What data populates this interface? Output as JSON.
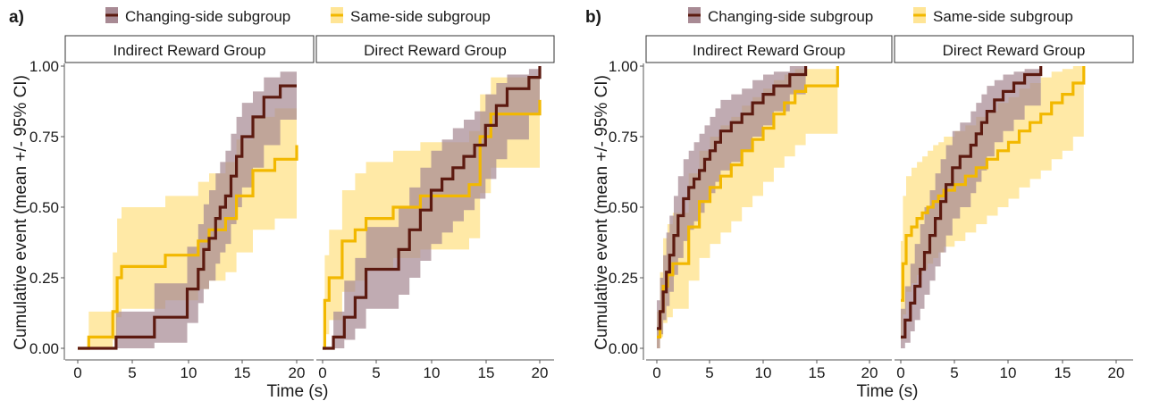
{
  "figure": {
    "background": "#ffffff",
    "colors": {
      "changing_line": "#5c1a10",
      "changing_band": "#a88a94",
      "same_line": "#f2b800",
      "same_band": "#ffe596",
      "axis": "#555555",
      "text": "#1a1a1a"
    }
  },
  "chart_data": [
    {
      "label": "a)",
      "type": "line",
      "legend": {
        "placement": "top",
        "entries": [
          "Changing-side subgroup",
          "Same-side subgroup"
        ]
      },
      "xlabel": "Time (s)",
      "ylabel": "Cumulative event (mean +/- 95% CI)",
      "xlim": [
        -1,
        21.5
      ],
      "ylim": [
        -0.05,
        1.02
      ],
      "xticks": [
        0,
        5,
        10,
        15,
        20
      ],
      "yticks": [
        0.0,
        0.25,
        0.5,
        0.75,
        1.0
      ],
      "ytick_labels": [
        "0.00",
        "0.25",
        "0.50",
        "0.75",
        "1.00"
      ],
      "grid": false,
      "panels": [
        {
          "title": "Indirect Reward Group",
          "series": [
            {
              "name": "Changing-side subgroup",
              "x": [
                0,
                3.5,
                7.0,
                10.0,
                11.0,
                11.5,
                12.0,
                12.6,
                13.0,
                13.5,
                14.0,
                14.5,
                15.0,
                16.0,
                17.0,
                18.5,
                20.0
              ],
              "y": [
                0,
                0.04,
                0.11,
                0.21,
                0.28,
                0.35,
                0.39,
                0.46,
                0.5,
                0.54,
                0.61,
                0.68,
                0.75,
                0.82,
                0.89,
                0.93,
                0.93
              ],
              "lower": [
                0,
                0.0,
                0.02,
                0.09,
                0.16,
                0.21,
                0.24,
                0.3,
                0.34,
                0.37,
                0.44,
                0.5,
                0.57,
                0.64,
                0.72,
                0.81,
                0.81
              ],
              "upper": [
                0,
                0.13,
                0.23,
                0.36,
                0.44,
                0.51,
                0.56,
                0.62,
                0.66,
                0.7,
                0.76,
                0.82,
                0.87,
                0.91,
                0.96,
                0.98,
                0.98
              ]
            },
            {
              "name": "Same-side subgroup",
              "x": [
                0,
                1.0,
                3.2,
                3.6,
                4.0,
                8.0,
                11.0,
                12.0,
                13.5,
                14.5,
                16.0,
                18.0,
                20.0
              ],
              "y": [
                0,
                0.04,
                0.13,
                0.25,
                0.29,
                0.33,
                0.38,
                0.42,
                0.46,
                0.54,
                0.63,
                0.67,
                0.72
              ],
              "lower": [
                0,
                0.0,
                0.03,
                0.11,
                0.14,
                0.17,
                0.21,
                0.24,
                0.27,
                0.34,
                0.42,
                0.46,
                0.52
              ],
              "upper": [
                0,
                0.13,
                0.34,
                0.46,
                0.5,
                0.54,
                0.59,
                0.62,
                0.66,
                0.74,
                0.82,
                0.85,
                0.89
              ]
            }
          ]
        },
        {
          "title": "Direct Reward Group",
          "series": [
            {
              "name": "Changing-side subgroup",
              "x": [
                0,
                1.0,
                2.0,
                3.0,
                4.0,
                7.0,
                8.0,
                9.0,
                10.0,
                11.0,
                12.0,
                13.0,
                14.0,
                15.0,
                16.0,
                17.0,
                19.0,
                20.0
              ],
              "y": [
                0,
                0.04,
                0.11,
                0.18,
                0.28,
                0.35,
                0.42,
                0.49,
                0.56,
                0.6,
                0.64,
                0.68,
                0.72,
                0.79,
                0.86,
                0.92,
                0.96,
                1.0
              ],
              "lower": [
                0,
                0.0,
                0.03,
                0.07,
                0.14,
                0.19,
                0.25,
                0.31,
                0.37,
                0.41,
                0.45,
                0.49,
                0.53,
                0.6,
                0.67,
                0.74,
                0.83,
                0.88
              ],
              "upper": [
                0,
                0.13,
                0.24,
                0.32,
                0.43,
                0.5,
                0.57,
                0.64,
                0.7,
                0.74,
                0.78,
                0.81,
                0.84,
                0.9,
                0.94,
                0.97,
                0.99,
                1.0
              ]
            },
            {
              "name": "Same-side subgroup",
              "x": [
                0,
                0.2,
                0.6,
                1.8,
                3.0,
                4.0,
                6.5,
                9.0,
                13.5,
                14.5,
                15.5,
                20.0
              ],
              "y": [
                0,
                0.17,
                0.25,
                0.38,
                0.42,
                0.46,
                0.5,
                0.54,
                0.58,
                0.75,
                0.83,
                0.88
              ],
              "lower": [
                0,
                0.05,
                0.1,
                0.2,
                0.24,
                0.28,
                0.32,
                0.35,
                0.39,
                0.55,
                0.64,
                0.7
              ],
              "upper": [
                0,
                0.33,
                0.42,
                0.56,
                0.62,
                0.66,
                0.7,
                0.73,
                0.77,
                0.9,
                0.96,
                0.98
              ]
            }
          ]
        }
      ]
    },
    {
      "label": "b)",
      "type": "line",
      "legend": {
        "placement": "top",
        "entries": [
          "Changing-side subgroup",
          "Same-side subgroup"
        ]
      },
      "xlabel": "Time (s)",
      "ylabel": "Cumulative event (mean +/- 95% CI)",
      "xlim": [
        -1,
        21.5
      ],
      "ylim": [
        -0.05,
        1.02
      ],
      "xticks": [
        0,
        5,
        10,
        15,
        20
      ],
      "yticks": [
        0.0,
        0.25,
        0.5,
        0.75,
        1.0
      ],
      "ytick_labels": [
        "0.00",
        "0.25",
        "0.50",
        "0.75",
        "1.00"
      ],
      "grid": false,
      "panels": [
        {
          "title": "Indirect Reward Group",
          "series": [
            {
              "name": "Changing-side subgroup",
              "x": [
                0,
                0.3,
                0.6,
                0.9,
                1.2,
                1.6,
                2.0,
                2.5,
                3.0,
                3.5,
                4.0,
                4.5,
                5.0,
                5.5,
                6.0,
                7.0,
                8.0,
                9.0,
                10.0,
                11.0,
                12.5,
                14.0
              ],
              "y": [
                0.07,
                0.13,
                0.2,
                0.27,
                0.33,
                0.4,
                0.47,
                0.53,
                0.57,
                0.6,
                0.63,
                0.67,
                0.7,
                0.73,
                0.77,
                0.8,
                0.83,
                0.87,
                0.9,
                0.93,
                0.97,
                1.0
              ],
              "lower": [
                0.0,
                0.05,
                0.1,
                0.15,
                0.2,
                0.26,
                0.32,
                0.38,
                0.42,
                0.45,
                0.48,
                0.52,
                0.55,
                0.59,
                0.63,
                0.66,
                0.7,
                0.75,
                0.79,
                0.84,
                0.9,
                0.95
              ],
              "upper": [
                0.17,
                0.25,
                0.33,
                0.41,
                0.47,
                0.54,
                0.61,
                0.67,
                0.7,
                0.73,
                0.76,
                0.79,
                0.82,
                0.85,
                0.88,
                0.9,
                0.92,
                0.95,
                0.97,
                0.98,
                1.0,
                1.0
              ]
            },
            {
              "name": "Same-side subgroup",
              "x": [
                0,
                0.3,
                0.6,
                1.0,
                1.5,
                3.0,
                4.0,
                5.0,
                6.0,
                7.0,
                8.0,
                9.0,
                10.0,
                11.0,
                12.0,
                13.0,
                14.0,
                15.0,
                17.0
              ],
              "y": [
                0.04,
                0.13,
                0.22,
                0.26,
                0.3,
                0.43,
                0.52,
                0.57,
                0.61,
                0.65,
                0.7,
                0.74,
                0.78,
                0.83,
                0.87,
                0.91,
                0.93,
                0.93,
                1.0
              ],
              "lower": [
                0.0,
                0.04,
                0.09,
                0.11,
                0.14,
                0.24,
                0.32,
                0.37,
                0.41,
                0.45,
                0.5,
                0.54,
                0.59,
                0.64,
                0.68,
                0.72,
                0.76,
                0.76,
                0.8
              ],
              "upper": [
                0.13,
                0.27,
                0.39,
                0.44,
                0.48,
                0.62,
                0.7,
                0.75,
                0.79,
                0.82,
                0.86,
                0.89,
                0.92,
                0.95,
                0.97,
                0.99,
                0.99,
                0.99,
                1.0
              ]
            }
          ]
        },
        {
          "title": "Direct Reward Group",
          "series": [
            {
              "name": "Changing-side subgroup",
              "x": [
                0,
                0.4,
                0.9,
                1.3,
                1.8,
                2.2,
                2.7,
                3.2,
                3.7,
                4.2,
                4.8,
                5.5,
                6.5,
                7.0,
                7.5,
                8.0,
                8.7,
                9.5,
                10.5,
                11.5,
                13.0
              ],
              "y": [
                0.04,
                0.1,
                0.16,
                0.22,
                0.28,
                0.34,
                0.4,
                0.46,
                0.52,
                0.58,
                0.64,
                0.68,
                0.72,
                0.76,
                0.8,
                0.84,
                0.88,
                0.91,
                0.94,
                0.97,
                1.0
              ],
              "lower": [
                0.0,
                0.02,
                0.06,
                0.1,
                0.14,
                0.19,
                0.24,
                0.29,
                0.34,
                0.4,
                0.46,
                0.5,
                0.55,
                0.59,
                0.63,
                0.68,
                0.73,
                0.77,
                0.81,
                0.86,
                0.92
              ],
              "upper": [
                0.14,
                0.22,
                0.3,
                0.37,
                0.44,
                0.5,
                0.56,
                0.62,
                0.67,
                0.72,
                0.77,
                0.8,
                0.84,
                0.87,
                0.9,
                0.93,
                0.95,
                0.97,
                0.98,
                0.99,
                1.0
              ]
            },
            {
              "name": "Same-side subgroup",
              "x": [
                0,
                0.2,
                0.5,
                1.0,
                1.5,
                2.0,
                2.5,
                3.0,
                3.5,
                4.0,
                5.0,
                6.0,
                7.0,
                8.0,
                9.0,
                10.0,
                11.0,
                12.0,
                13.0,
                14.0,
                15.0,
                16.0,
                17.0
              ],
              "y": [
                0.17,
                0.3,
                0.4,
                0.43,
                0.46,
                0.48,
                0.5,
                0.52,
                0.54,
                0.56,
                0.58,
                0.61,
                0.64,
                0.67,
                0.7,
                0.73,
                0.77,
                0.8,
                0.83,
                0.87,
                0.9,
                0.94,
                1.0
              ],
              "lower": [
                0.03,
                0.12,
                0.2,
                0.23,
                0.26,
                0.28,
                0.3,
                0.32,
                0.34,
                0.36,
                0.38,
                0.41,
                0.44,
                0.47,
                0.5,
                0.53,
                0.57,
                0.6,
                0.63,
                0.67,
                0.7,
                0.75,
                0.8
              ],
              "upper": [
                0.38,
                0.54,
                0.61,
                0.64,
                0.66,
                0.68,
                0.7,
                0.72,
                0.73,
                0.75,
                0.77,
                0.79,
                0.82,
                0.84,
                0.87,
                0.89,
                0.92,
                0.94,
                0.96,
                0.98,
                0.99,
                1.0,
                1.0
              ]
            }
          ]
        }
      ]
    }
  ]
}
